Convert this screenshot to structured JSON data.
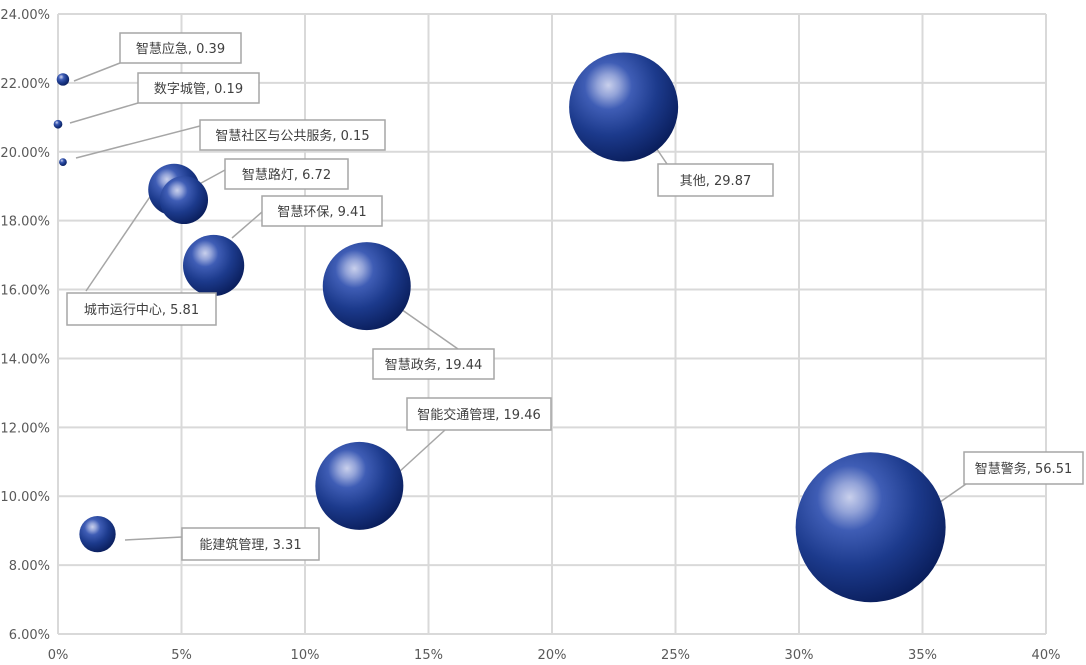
{
  "chart_data": {
    "type": "bubble",
    "title": "",
    "xlabel": "",
    "ylabel": "",
    "xlim": [
      0,
      40
    ],
    "ylim": [
      6,
      24
    ],
    "x_ticks": [
      "0%",
      "5%",
      "10%",
      "15%",
      "20%",
      "25%",
      "30%",
      "35%",
      "40%"
    ],
    "y_ticks": [
      "6.00%",
      "8.00%",
      "10.00%",
      "12.00%",
      "14.00%",
      "16.00%",
      "18.00%",
      "20.00%",
      "22.00%",
      "24.00%"
    ],
    "grid": true,
    "legend": "none",
    "bubble_color": "#1f3a8a",
    "points": [
      {
        "label": "智慧应急, 0.39",
        "x": 0.2,
        "y": 22.1,
        "size": 0.39
      },
      {
        "label": "数字城管, 0.19",
        "x": 0.0,
        "y": 20.8,
        "size": 0.19
      },
      {
        "label": "智慧社区与公共服务, 0.15",
        "x": 0.2,
        "y": 19.7,
        "size": 0.15
      },
      {
        "label": "智慧路灯, 6.72",
        "x": 4.7,
        "y": 18.9,
        "size": 6.72
      },
      {
        "label": "城市运行中心, 5.81",
        "x": 5.1,
        "y": 18.6,
        "size": 5.81
      },
      {
        "label": "智慧环保, 9.41",
        "x": 6.3,
        "y": 16.7,
        "size": 9.41
      },
      {
        "label": "智慧政务, 19.44",
        "x": 12.5,
        "y": 16.1,
        "size": 19.44
      },
      {
        "label": "智能交通管理, 19.46",
        "x": 12.2,
        "y": 10.3,
        "size": 19.46
      },
      {
        "label": "能建筑管理, 3.31",
        "x": 1.6,
        "y": 8.9,
        "size": 3.31
      },
      {
        "label": "其他, 29.87",
        "x": 22.9,
        "y": 21.3,
        "size": 29.87
      },
      {
        "label": "智慧警务, 56.51",
        "x": 32.9,
        "y": 9.1,
        "size": 56.51
      }
    ]
  }
}
